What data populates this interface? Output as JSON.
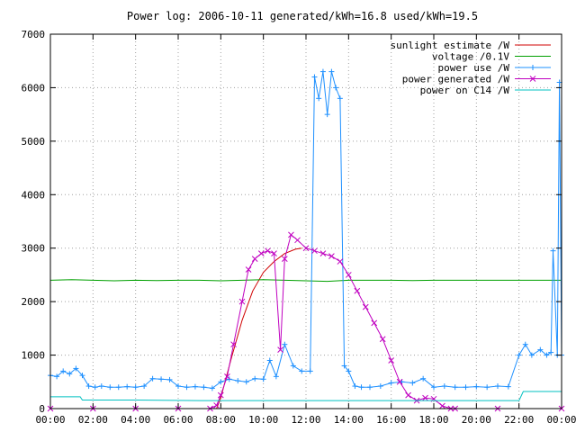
{
  "chart_data": {
    "type": "line",
    "title": "Power log: 2006-10-11 generated/kWh=16.8 used/kWh=19.5",
    "xlabel": "",
    "ylabel": "",
    "xlim": [
      0,
      24
    ],
    "ylim": [
      0,
      7000
    ],
    "x_ticks": [
      "00:00",
      "02:00",
      "04:00",
      "06:00",
      "08:00",
      "10:00",
      "12:00",
      "14:00",
      "16:00",
      "18:00",
      "20:00",
      "22:00",
      "00:00"
    ],
    "y_ticks": [
      "0",
      "1000",
      "2000",
      "3000",
      "4000",
      "5000",
      "6000",
      "7000"
    ],
    "grid": true,
    "legend_position": "top-right",
    "series": [
      {
        "name": "sunlight estimate /W",
        "color": "#d00000",
        "marker": "none",
        "x": [
          7.8,
          8.0,
          8.5,
          9.0,
          9.5,
          10.0,
          10.5,
          11.0,
          11.5,
          11.8
        ],
        "y": [
          0,
          200,
          950,
          1650,
          2200,
          2550,
          2750,
          2900,
          2980,
          3000
        ]
      },
      {
        "name": "voltage /0.1V",
        "color": "#00a000",
        "marker": "none",
        "x": [
          0,
          1,
          2,
          3,
          4,
          5,
          6,
          7,
          8,
          9,
          10,
          11,
          12,
          13,
          14,
          15,
          16,
          17,
          18,
          19,
          20,
          21,
          22,
          23,
          23.5,
          24
        ],
        "y": [
          2400,
          2410,
          2400,
          2390,
          2400,
          2395,
          2400,
          2400,
          2390,
          2400,
          2410,
          2400,
          2390,
          2380,
          2400,
          2400,
          2400,
          2395,
          2400,
          2400,
          2400,
          2400,
          2400,
          2400,
          2400,
          2400
        ]
      },
      {
        "name": "power use /W",
        "color": "#1e90ff",
        "marker": "plus",
        "x": [
          0,
          0.3,
          0.6,
          0.9,
          1.2,
          1.5,
          1.8,
          2.1,
          2.4,
          2.8,
          3.2,
          3.6,
          4.0,
          4.4,
          4.8,
          5.2,
          5.6,
          6.0,
          6.4,
          6.8,
          7.2,
          7.6,
          8.0,
          8.4,
          8.8,
          9.2,
          9.6,
          10.0,
          10.3,
          10.6,
          11.0,
          11.4,
          11.8,
          12.2,
          12.4,
          12.6,
          12.8,
          13.0,
          13.2,
          13.4,
          13.6,
          13.8,
          14.0,
          14.3,
          14.6,
          15.0,
          15.5,
          16.0,
          16.5,
          17.0,
          17.5,
          18.0,
          18.5,
          19.0,
          19.5,
          20.0,
          20.5,
          21.0,
          21.5,
          22.0,
          22.3,
          22.6,
          23.0,
          23.3,
          23.5,
          23.6,
          23.8,
          23.9,
          24
        ],
        "y": [
          620,
          600,
          700,
          650,
          750,
          620,
          420,
          400,
          420,
          400,
          400,
          410,
          400,
          420,
          560,
          550,
          540,
          420,
          400,
          410,
          400,
          380,
          500,
          550,
          520,
          500,
          560,
          550,
          900,
          600,
          1200,
          800,
          700,
          700,
          6200,
          5800,
          6300,
          5500,
          6300,
          6000,
          5800,
          800,
          700,
          420,
          400,
          400,
          420,
          480,
          500,
          480,
          560,
          400,
          420,
          400,
          400,
          410,
          400,
          420,
          410,
          1000,
          1200,
          1000,
          1100,
          1000,
          1050,
          2950,
          1000,
          6100,
          1000
        ]
      },
      {
        "name": "power generated /W",
        "color": "#c000c0",
        "marker": "x",
        "x": [
          0,
          2,
          4,
          6,
          7.5,
          7.8,
          8.0,
          8.3,
          8.6,
          9.0,
          9.3,
          9.6,
          9.9,
          10.2,
          10.5,
          10.8,
          11.0,
          11.3,
          11.6,
          12.0,
          12.4,
          12.8,
          13.2,
          13.6,
          14.0,
          14.4,
          14.8,
          15.2,
          15.6,
          16.0,
          16.4,
          16.8,
          17.2,
          17.6,
          18.0,
          18.4,
          18.8,
          19,
          21,
          24
        ],
        "y": [
          0,
          0,
          0,
          0,
          0,
          60,
          250,
          600,
          1200,
          2000,
          2600,
          2800,
          2900,
          2950,
          2900,
          1100,
          2800,
          3250,
          3150,
          3000,
          2950,
          2900,
          2850,
          2750,
          2500,
          2200,
          1900,
          1600,
          1300,
          900,
          500,
          250,
          150,
          200,
          180,
          50,
          0,
          0,
          0,
          0
        ]
      },
      {
        "name": "power on C14 /W",
        "color": "#00c0c0",
        "marker": "none",
        "x": [
          0,
          1.4,
          1.5,
          4,
          7,
          8,
          12,
          16,
          18,
          21,
          22,
          22.2,
          23.5,
          24
        ],
        "y": [
          220,
          220,
          160,
          160,
          150,
          150,
          150,
          150,
          150,
          150,
          150,
          320,
          320,
          320
        ]
      }
    ]
  }
}
